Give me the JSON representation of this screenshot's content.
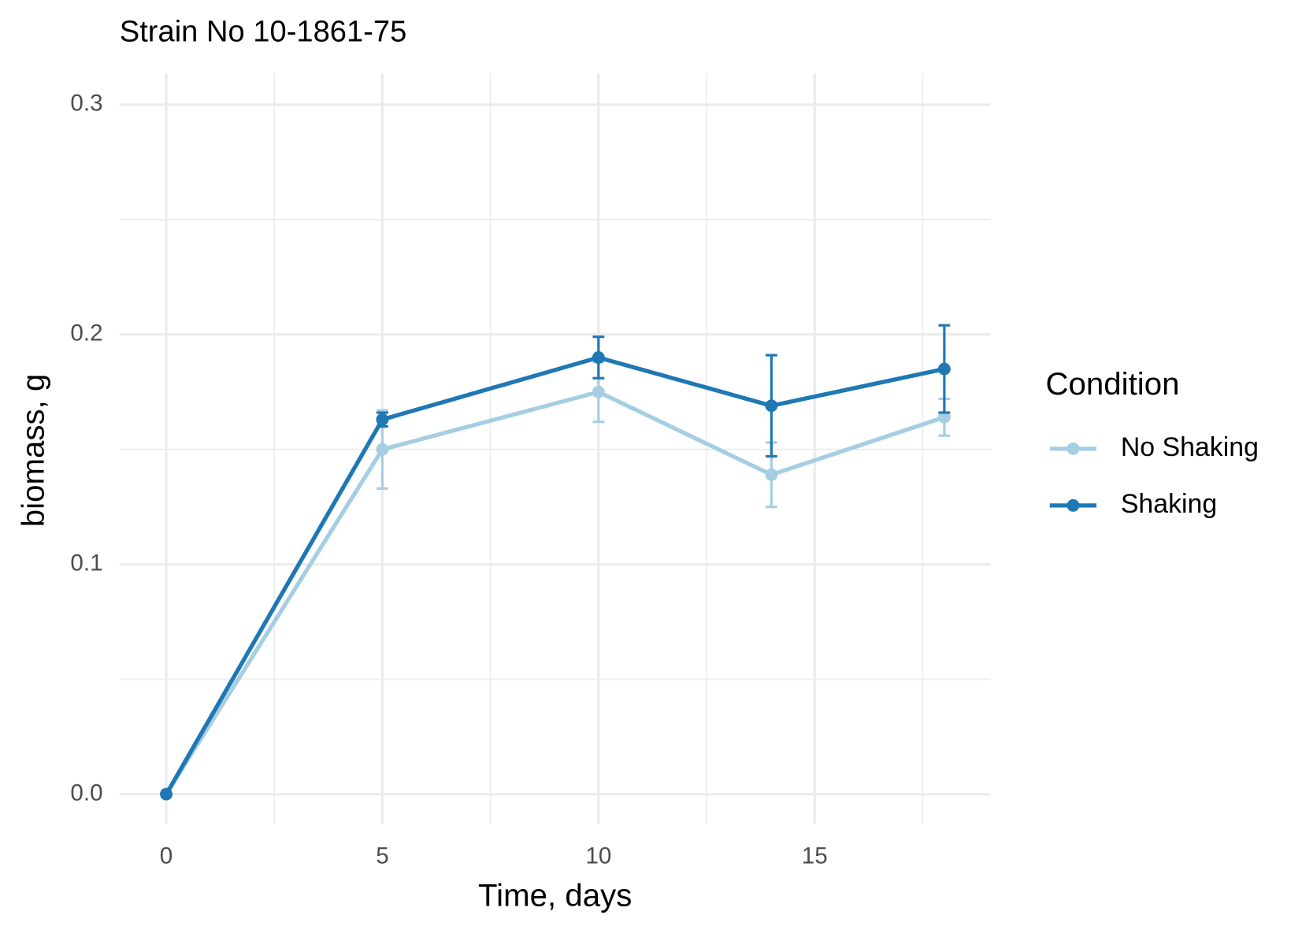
{
  "chart_data": {
    "type": "line",
    "title": "Strain No  10-1861-75",
    "x_label": "Time, days",
    "y_label": "biomass, g",
    "legend_title": "Condition",
    "legend_position": "right",
    "grid": true,
    "minor_grid": true,
    "x": [
      0,
      5,
      10,
      14,
      18
    ],
    "series": [
      {
        "name": "No Shaking",
        "color": "#a6cee3",
        "values": [
          0,
          0.15,
          0.175,
          0.139,
          0.164
        ],
        "errors": [
          0,
          0.017,
          0.013,
          0.014,
          0.008
        ]
      },
      {
        "name": "Shaking",
        "color": "#1f78b4",
        "values": [
          0,
          0.163,
          0.19,
          0.169,
          0.185
        ],
        "errors": [
          0,
          0.003,
          0.009,
          0.022,
          0.019
        ]
      }
    ],
    "xlim": [
      -1.08,
      19.07
    ],
    "ylim": [
      -0.013,
      0.3136
    ],
    "xticks": [
      0,
      5,
      10,
      15
    ],
    "yticks": [
      {
        "value": 0,
        "label": "0.0"
      },
      0.1,
      0.2,
      0.3
    ]
  }
}
